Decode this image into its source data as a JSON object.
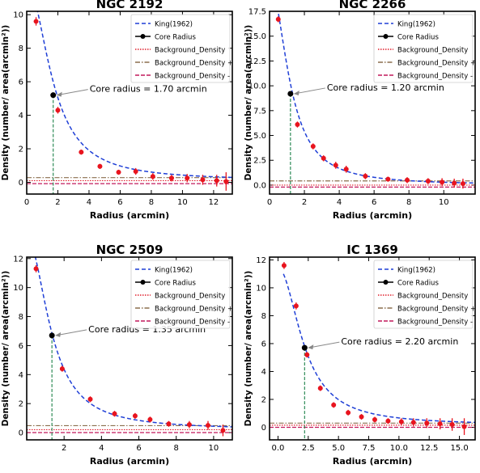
{
  "legend_labels": {
    "king": "King(1962)",
    "core": "Core Radius",
    "bg": "Background_Density",
    "bg_plus": "Background_Density +",
    "bg_minus": "Background_Density -"
  },
  "colors": {
    "king": "#1f3fd6",
    "core_marker": "#000000",
    "bg": "#e0202e",
    "bg_plus": "#8b6f4e",
    "bg_minus": "#c2185b",
    "points": "#e8141e",
    "core_vline": "#2e8b57"
  },
  "chart_data": [
    {
      "type": "scatter",
      "title": "NGC 2192",
      "xlabel": "Radius (arcmin)",
      "ylabel": "Density (number/ area(arcmin²))",
      "xlim": [
        0,
        13.2
      ],
      "ylim": [
        -0.7,
        10.2
      ],
      "xticks": [
        0,
        2,
        4,
        6,
        8,
        10,
        12
      ],
      "yticks": [
        0,
        2,
        4,
        6,
        8,
        10
      ],
      "ytick_labels": [
        "0",
        "2",
        "4",
        "6",
        "8",
        "10"
      ],
      "annotation": "Core radius = 1.70 arcmin",
      "core_radius": 1.7,
      "core_density": 5.2,
      "king_params": {
        "f0": 11.8,
        "rc": 1.7,
        "fb": 0.1
      },
      "background": 0.1,
      "background_plus": 0.28,
      "background_minus": -0.08,
      "x": [
        0.6,
        2.0,
        3.5,
        4.7,
        5.9,
        7.0,
        8.1,
        9.3,
        10.3,
        11.3,
        12.2,
        12.8
      ],
      "y": [
        9.6,
        4.3,
        1.8,
        0.95,
        0.6,
        0.65,
        0.35,
        0.25,
        0.25,
        0.15,
        0.1,
        0.05
      ],
      "yerr": [
        0.25,
        0.2,
        0.15,
        0.15,
        0.15,
        0.2,
        0.2,
        0.2,
        0.25,
        0.3,
        0.35,
        0.55
      ]
    },
    {
      "type": "scatter",
      "title": "NGC 2266",
      "xlabel": "Radius (arcmin)",
      "ylabel": "Density (number/ area(arcmin²))",
      "xlim": [
        0,
        11.8
      ],
      "ylim": [
        -0.9,
        17.5
      ],
      "xticks": [
        0,
        2,
        4,
        6,
        8,
        10
      ],
      "yticks": [
        0,
        2.5,
        5,
        7.5,
        10,
        12.5,
        15,
        17.5
      ],
      "ytick_labels": [
        "0.0",
        "2.5",
        "5.0",
        "7.5",
        "10.0",
        "12.5",
        "15.0",
        "17.5"
      ],
      "annotation": "Core radius = 1.20 arcmin",
      "core_radius": 1.2,
      "core_density": 9.2,
      "king_params": {
        "f0": 20.4,
        "rc": 1.2,
        "fb": 0.0
      },
      "background": 0.0,
      "background_plus": 0.42,
      "background_minus": -0.2,
      "x": [
        0.5,
        1.6,
        2.5,
        3.1,
        3.8,
        4.4,
        5.5,
        6.8,
        7.9,
        9.1,
        9.9,
        10.6,
        11.1
      ],
      "y": [
        16.7,
        6.1,
        3.9,
        2.7,
        2.0,
        1.6,
        0.9,
        0.6,
        0.5,
        0.4,
        0.3,
        0.2,
        0.15
      ],
      "yerr": [
        0.3,
        0.3,
        0.3,
        0.3,
        0.35,
        0.35,
        0.3,
        0.25,
        0.3,
        0.3,
        0.4,
        0.45,
        0.5
      ]
    },
    {
      "type": "scatter",
      "title": "NGC 2509",
      "xlabel": "Radius (arcmin)",
      "ylabel": "Density (number/ area(arcmin²))",
      "xlim": [
        0,
        11.0
      ],
      "ylim": [
        -0.5,
        12.1
      ],
      "xticks": [
        2,
        4,
        6,
        8,
        10
      ],
      "yticks": [
        0,
        2,
        4,
        6,
        8,
        10,
        12
      ],
      "ytick_labels": [
        "0",
        "2",
        "4",
        "6",
        "8",
        "10",
        "12"
      ],
      "annotation": "Core radius = 1.35 arcmin",
      "core_radius": 1.35,
      "core_density": 6.7,
      "king_params": {
        "f0": 13.3,
        "rc": 1.35,
        "fb": 0.2
      },
      "background": 0.2,
      "background_plus": 0.48,
      "background_minus": 0.0,
      "x": [
        0.5,
        1.9,
        3.4,
        4.7,
        5.8,
        6.6,
        7.6,
        8.7,
        9.7,
        10.5
      ],
      "y": [
        11.3,
        4.4,
        2.3,
        1.3,
        1.15,
        0.9,
        0.6,
        0.55,
        0.5,
        0.15
      ],
      "yerr": [
        0.25,
        0.2,
        0.2,
        0.2,
        0.2,
        0.2,
        0.2,
        0.25,
        0.3,
        0.4
      ]
    },
    {
      "type": "scatter",
      "title": "IC 1369",
      "xlabel": "Radius (arcmin)",
      "ylabel": "Density (number/ area(arcmin²))",
      "xlim": [
        -0.7,
        16.3
      ],
      "ylim": [
        -0.9,
        12.2
      ],
      "xticks": [
        0,
        2.5,
        5,
        7.5,
        10,
        12.5,
        15
      ],
      "xtick_labels": [
        "0.0",
        "2.5",
        "5.0",
        "7.5",
        "10.0",
        "12.5",
        "15.0"
      ],
      "yticks": [
        0,
        2,
        4,
        6,
        8,
        10,
        12
      ],
      "ytick_labels": [
        "0",
        "2",
        "4",
        "6",
        "8",
        "10",
        "12"
      ],
      "annotation": "Core radius = 2.20 arcmin",
      "core_radius": 2.2,
      "core_density": 5.7,
      "king_params": {
        "f0": 11.3,
        "rc": 2.2,
        "fb": 0.15
      },
      "background": 0.15,
      "background_plus": 0.3,
      "background_minus": 0.0,
      "x": [
        0.5,
        1.5,
        2.4,
        3.5,
        4.6,
        5.8,
        6.9,
        8.0,
        9.1,
        10.2,
        11.2,
        12.3,
        13.4,
        14.4,
        15.4
      ],
      "y": [
        11.6,
        8.7,
        5.2,
        2.8,
        1.6,
        1.05,
        0.75,
        0.55,
        0.45,
        0.4,
        0.35,
        0.3,
        0.25,
        0.2,
        0.05
      ],
      "yerr": [
        0.25,
        0.25,
        0.2,
        0.2,
        0.2,
        0.2,
        0.2,
        0.2,
        0.2,
        0.25,
        0.3,
        0.35,
        0.4,
        0.45,
        0.6
      ]
    }
  ]
}
